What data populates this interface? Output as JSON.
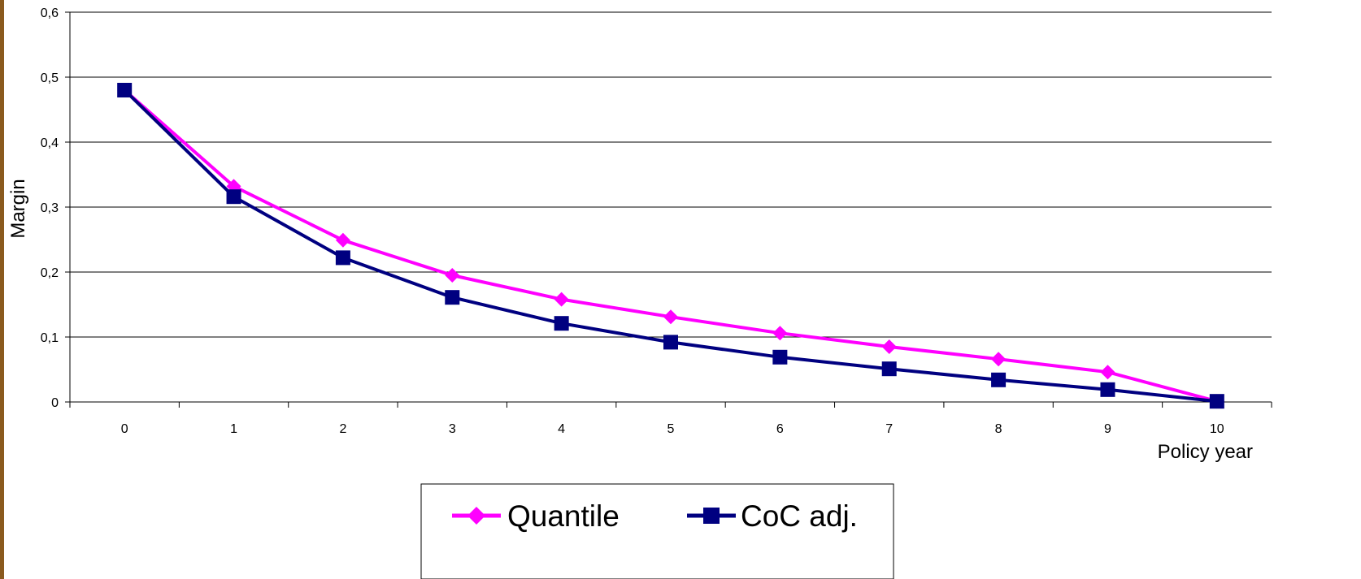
{
  "chart_data": {
    "type": "line",
    "title": "",
    "xlabel": "Policy year",
    "ylabel": "Margin",
    "x": [
      0,
      1,
      2,
      3,
      4,
      5,
      6,
      7,
      8,
      9,
      10
    ],
    "x_tick_labels": [
      "0",
      "1",
      "2",
      "3",
      "4",
      "5",
      "6",
      "7",
      "8",
      "9",
      "10"
    ],
    "ylim": [
      0,
      0.6
    ],
    "y_ticks": [
      0,
      0.1,
      0.2,
      0.3,
      0.4,
      0.5,
      0.6
    ],
    "y_tick_labels": [
      "0",
      "0,1",
      "0,2",
      "0,3",
      "0,4",
      "0,5",
      "0,6"
    ],
    "grid": "horizontal",
    "legend_position": "bottom-center",
    "series": [
      {
        "name": "Quantile",
        "color": "#ff00ff",
        "marker": "diamond",
        "values": [
          0.48,
          0.332,
          0.249,
          0.195,
          0.158,
          0.131,
          0.106,
          0.085,
          0.066,
          0.046,
          0.001
        ]
      },
      {
        "name": "CoC adj.",
        "color": "#000080",
        "marker": "square",
        "values": [
          0.48,
          0.316,
          0.222,
          0.161,
          0.121,
          0.092,
          0.069,
          0.051,
          0.034,
          0.019,
          0.001
        ]
      }
    ]
  }
}
